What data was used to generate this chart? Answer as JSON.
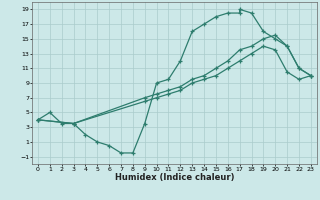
{
  "xlabel": "Humidex (Indice chaleur)",
  "bg_color": "#cce8e8",
  "grid_color": "#aacccc",
  "line_color": "#2e7d6e",
  "xlim": [
    -0.5,
    23.5
  ],
  "ylim": [
    -2,
    20
  ],
  "xticks": [
    0,
    1,
    2,
    3,
    4,
    5,
    6,
    7,
    8,
    9,
    10,
    11,
    12,
    13,
    14,
    15,
    16,
    17,
    18,
    19,
    20,
    21,
    22,
    23
  ],
  "yticks": [
    -1,
    1,
    3,
    5,
    7,
    9,
    11,
    13,
    15,
    17,
    19
  ],
  "line1_x": [
    0,
    1,
    2,
    3,
    4,
    5,
    6,
    7,
    8,
    9,
    10,
    11,
    12,
    13,
    14,
    15,
    16,
    17,
    17,
    18,
    19,
    20,
    21,
    22,
    23
  ],
  "line1_y": [
    4,
    5,
    3.5,
    3.5,
    2,
    1,
    0.5,
    -0.5,
    -0.5,
    3.5,
    9,
    9.5,
    12,
    16,
    17,
    18,
    18.5,
    18.5,
    19,
    18.5,
    16,
    15,
    14,
    11,
    10
  ],
  "line2_x": [
    0,
    3,
    9,
    10,
    11,
    12,
    13,
    14,
    15,
    16,
    17,
    18,
    19,
    20,
    21,
    22,
    23
  ],
  "line2_y": [
    4,
    3.5,
    7,
    7.5,
    8,
    8.5,
    9.5,
    10,
    11,
    12,
    13.5,
    14,
    15,
    15.5,
    14,
    11,
    10
  ],
  "line3_x": [
    0,
    3,
    9,
    10,
    11,
    12,
    13,
    14,
    15,
    16,
    17,
    18,
    19,
    20,
    21,
    22,
    23
  ],
  "line3_y": [
    4,
    3.5,
    6.5,
    7,
    7.5,
    8,
    9,
    9.5,
    10,
    11,
    12,
    13,
    14,
    13.5,
    10.5,
    9.5,
    10
  ]
}
